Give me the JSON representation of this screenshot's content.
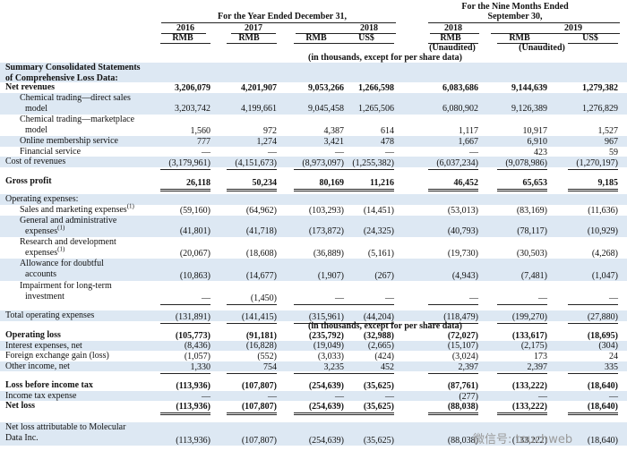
{
  "header": {
    "period_nine_months": [
      "For the Nine Months Ended",
      "September 30,"
    ],
    "period_year": "For the Year Ended December 31,",
    "years": [
      "2016",
      "2017",
      "2018",
      "2018",
      "2019"
    ],
    "currencies": [
      "RMB",
      "RMB",
      "RMB",
      "US$",
      "RMB",
      "RMB",
      "US$"
    ],
    "unaudited": [
      "(Unaudited)",
      "(Unaudited)"
    ],
    "unit_note": "(in thousands, except for per share data)"
  },
  "table": {
    "rows": [
      {
        "label": [
          "Summary Consolidated Statements",
          "of Comprehensive Loss Data:"
        ],
        "values": []
      },
      {
        "label": [
          "Net revenues"
        ],
        "values": [
          "3,206,079",
          "4,201,907",
          "9,053,266",
          "1,266,598",
          "6,083,686",
          "9,144,639",
          "1,279,382"
        ]
      },
      {
        "label": [
          "Chemical trading—direct sales",
          "model"
        ],
        "values": [
          "3,203,742",
          "4,199,661",
          "9,045,458",
          "1,265,506",
          "6,080,902",
          "9,126,389",
          "1,276,829"
        ]
      },
      {
        "label": [
          "Chemical trading—marketplace",
          "model"
        ],
        "values": [
          "1,560",
          "972",
          "4,387",
          "614",
          "1,117",
          "10,917",
          "1,527"
        ]
      },
      {
        "label": [
          "Online membership service"
        ],
        "values": [
          "777",
          "1,274",
          "3,421",
          "478",
          "1,667",
          "6,910",
          "967"
        ]
      },
      {
        "label": [
          "Financial service"
        ],
        "values": [
          "—",
          "—",
          "—",
          "—",
          "—",
          "423",
          "59"
        ]
      },
      {
        "label": [
          "Cost of revenues"
        ],
        "values": [
          "(3,179,961)",
          "(4,151,673)",
          "(8,973,097)",
          "(1,255,382)",
          "(6,037,234)",
          "(9,078,986)",
          "(1,270,197)"
        ]
      },
      {
        "label": [
          "Gross profit"
        ],
        "values": [
          "26,118",
          "50,234",
          "80,169",
          "11,216",
          "46,452",
          "65,653",
          "9,185"
        ]
      },
      {
        "label": [
          "Operating expenses:"
        ],
        "values": []
      },
      {
        "label": [
          "Sales and marketing expenses"
        ],
        "footnote": "(1)",
        "values": [
          "(59,160)",
          "(64,962)",
          "(103,293)",
          "(14,451)",
          "(53,013)",
          "(83,169)",
          "(11,636)"
        ]
      },
      {
        "label": [
          "General and administrative",
          "expenses"
        ],
        "footnote": "(1)",
        "values": [
          "(41,801)",
          "(41,718)",
          "(173,872)",
          "(24,325)",
          "(40,793)",
          "(78,117)",
          "(10,929)"
        ]
      },
      {
        "label": [
          "Research and development",
          "expenses"
        ],
        "footnote": "(1)",
        "values": [
          "(20,067)",
          "(18,608)",
          "(36,889)",
          "(5,161)",
          "(19,730)",
          "(30,503)",
          "(4,268)"
        ]
      },
      {
        "label": [
          "Allowance for doubtful",
          "accounts"
        ],
        "values": [
          "(10,863)",
          "(14,677)",
          "(1,907)",
          "(267)",
          "(4,943)",
          "(7,481)",
          "(1,047)"
        ]
      },
      {
        "label": [
          "Impairment for long-term",
          "investment"
        ],
        "values": [
          "—",
          "(1,450)",
          "—",
          "—",
          "—",
          "—",
          "—"
        ]
      },
      {
        "label": [
          "Total operating expenses"
        ],
        "values": [
          "(131,891)",
          "(141,415)",
          "(315,961)",
          "(44,204)",
          "(118,479)",
          "(199,270)",
          "(27,880)"
        ]
      },
      {
        "label": [
          "Operating loss"
        ],
        "values": [
          "(105,773)",
          "(91,181)",
          "(235,792)",
          "(32,988)",
          "(72,027)",
          "(133,617)",
          "(18,695)"
        ]
      },
      {
        "label": [
          "Interest expenses, net"
        ],
        "values": [
          "(8,436)",
          "(16,828)",
          "(19,049)",
          "(2,665)",
          "(15,107)",
          "(2,175)",
          "(304)"
        ]
      },
      {
        "label": [
          "Foreign exchange gain (loss)"
        ],
        "values": [
          "(1,057)",
          "(552)",
          "(3,033)",
          "(424)",
          "(3,024)",
          "173",
          "24"
        ]
      },
      {
        "label": [
          "Other income, net"
        ],
        "values": [
          "1,330",
          "754",
          "3,235",
          "452",
          "2,397",
          "2,397",
          "335"
        ]
      },
      {
        "label": [
          "Loss before income tax"
        ],
        "values": [
          "(113,936)",
          "(107,807)",
          "(254,639)",
          "(35,625)",
          "(87,761)",
          "(133,222)",
          "(18,640)"
        ]
      },
      {
        "label": [
          "Income tax expense"
        ],
        "values": [
          "—",
          "—",
          "—",
          "—",
          "(277)",
          "—",
          "—"
        ]
      },
      {
        "label": [
          "Net loss"
        ],
        "values": [
          "(113,936)",
          "(107,807)",
          "(254,639)",
          "(35,625)",
          "(88,038)",
          "(133,222)",
          "(18,640)"
        ]
      },
      {
        "label": [
          "Net loss attributable to Molecular",
          "Data Inc."
        ],
        "values": [
          "(113,936)",
          "(107,807)",
          "(254,639)",
          "(35,625)",
          "(88,038)",
          "(133,222)",
          "(18,640)"
        ]
      }
    ]
  },
  "repeated_unit_note": "(in thousands, except for per share data)",
  "watermark": "微信号: touchweb"
}
